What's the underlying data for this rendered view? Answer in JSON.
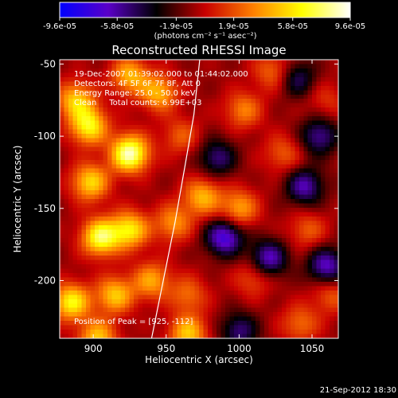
{
  "chart_data": {
    "type": "heatmap",
    "title": "Reconstructed RHESSI Image",
    "xlabel": "Heliocentric X (arcsec)",
    "ylabel": "Heliocentric Y (arcsec)",
    "xlim": [
      877,
      1068
    ],
    "ylim": [
      -240,
      -47
    ],
    "x_ticks": [
      900,
      950,
      1000,
      1050
    ],
    "y_ticks": [
      -50,
      -100,
      -150,
      -200
    ],
    "colorbar": {
      "range": [
        -9.6e-05,
        9.6e-05
      ],
      "tick_values": [
        -9.6e-05,
        -5.8e-05,
        -1.9e-05,
        1.9e-05,
        5.8e-05,
        9.6e-05
      ],
      "tick_labels": [
        "-9.6e-05",
        "-5.8e-05",
        "-1.9e-05",
        "1.9e-05",
        "5.8e-05",
        "9.6e-05"
      ],
      "unit_label": "(photons cm⁻² s⁻¹ asec⁻²)",
      "colormap": [
        "#0000ff",
        "#5a00c8",
        "#000000",
        "#c80000",
        "#ff8000",
        "#ffff00",
        "#ffffff"
      ]
    },
    "annotations": [
      "19-Dec-2007 01:39:02.000 to 01:44:02.000",
      "Detectors: 4F 5F 6F 7F 8F, Att 0",
      "Energy Range: 25.0 - 50.0 keV",
      "Clean     Total counts: 6.99E+03"
    ],
    "peak_label": "Position of Peak = [925, -112]",
    "peak": [
      925,
      -112
    ],
    "limb_points": [
      [
        940,
        -240
      ],
      [
        948,
        -200
      ],
      [
        956,
        -160
      ],
      [
        963,
        -120
      ],
      [
        969,
        -85
      ],
      [
        973,
        -47
      ]
    ],
    "hot_spots": [
      {
        "x": 925,
        "y": -112,
        "v": 1.0
      },
      {
        "x": 897,
        "y": -93,
        "v": 0.75
      },
      {
        "x": 888,
        "y": -75,
        "v": 0.6
      },
      {
        "x": 905,
        "y": -170,
        "v": 0.85
      },
      {
        "x": 925,
        "y": -165,
        "v": 0.7
      },
      {
        "x": 898,
        "y": -132,
        "v": 0.65
      },
      {
        "x": 885,
        "y": -215,
        "v": 0.75
      },
      {
        "x": 915,
        "y": -210,
        "v": 0.6
      },
      {
        "x": 903,
        "y": -240,
        "v": 0.6
      },
      {
        "x": 925,
        "y": -58,
        "v": 0.55
      },
      {
        "x": 945,
        "y": -70,
        "v": 0.55
      },
      {
        "x": 960,
        "y": -100,
        "v": 0.3
      },
      {
        "x": 975,
        "y": -142,
        "v": 0.55
      },
      {
        "x": 955,
        "y": -160,
        "v": 0.45
      },
      {
        "x": 1003,
        "y": -82,
        "v": 0.4
      },
      {
        "x": 1030,
        "y": -112,
        "v": 0.3
      },
      {
        "x": 1010,
        "y": -198,
        "v": 0.3
      },
      {
        "x": 965,
        "y": -210,
        "v": 0.35
      },
      {
        "x": 965,
        "y": -237,
        "v": 0.6
      },
      {
        "x": 1042,
        "y": -230,
        "v": 0.35
      },
      {
        "x": 1047,
        "y": -165,
        "v": 0.3
      },
      {
        "x": 1063,
        "y": -210,
        "v": 0.3
      },
      {
        "x": 1060,
        "y": -75,
        "v": 0.2
      },
      {
        "x": 940,
        "y": -200,
        "v": 0.5
      },
      {
        "x": 1000,
        "y": -150,
        "v": 0.5
      },
      {
        "x": 1023,
        "y": -55,
        "v": 0.35
      }
    ],
    "cold_spots": [
      {
        "x": 990,
        "y": -170,
        "v": -0.7
      },
      {
        "x": 1020,
        "y": -185,
        "v": -0.6
      },
      {
        "x": 1045,
        "y": -135,
        "v": -0.55
      },
      {
        "x": 1055,
        "y": -100,
        "v": -0.5
      },
      {
        "x": 1060,
        "y": -190,
        "v": -0.6
      },
      {
        "x": 985,
        "y": -115,
        "v": -0.45
      },
      {
        "x": 1040,
        "y": -60,
        "v": -0.4
      },
      {
        "x": 1000,
        "y": -235,
        "v": -0.45
      }
    ]
  },
  "footer_timestamp": "21-Sep-2012 18:30"
}
